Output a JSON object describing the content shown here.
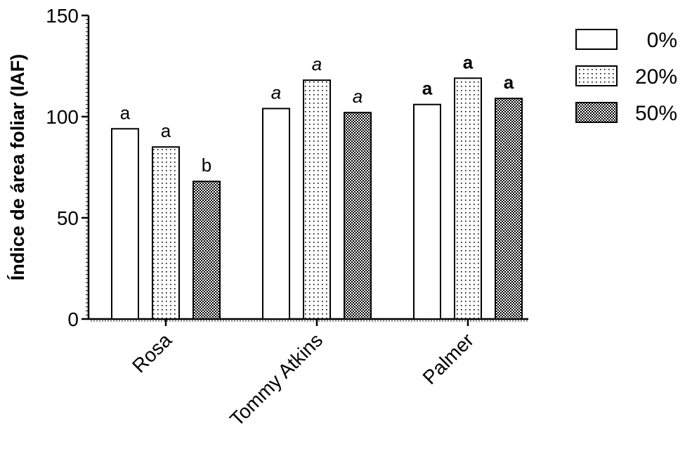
{
  "chart_data": {
    "type": "bar",
    "title": "",
    "xlabel": "",
    "ylabel": "Índice de área foliar (IAF)",
    "ylim": [
      0,
      150
    ],
    "yticks": [
      0,
      50,
      100,
      150
    ],
    "categories": [
      "Rosa",
      "Tommy Atkins",
      "Palmer"
    ],
    "series": [
      {
        "name": "0%",
        "pattern": "none",
        "values": [
          94,
          104,
          106
        ],
        "letters": [
          "a",
          "a",
          "a"
        ]
      },
      {
        "name": "20%",
        "pattern": "dots-sparse",
        "values": [
          85,
          118,
          119
        ],
        "letters": [
          "a",
          "a",
          "a"
        ]
      },
      {
        "name": "50%",
        "pattern": "checker-dense",
        "values": [
          68,
          102,
          109
        ],
        "letters": [
          "b",
          "a",
          "a"
        ]
      }
    ],
    "letter_style_by_category": [
      "normal",
      "italic",
      "bold"
    ],
    "legend_position": "top-right",
    "grid": false,
    "colors": {
      "axis": "#000000",
      "bar_fill": "#ffffff",
      "pattern_ink": "#000000"
    }
  }
}
